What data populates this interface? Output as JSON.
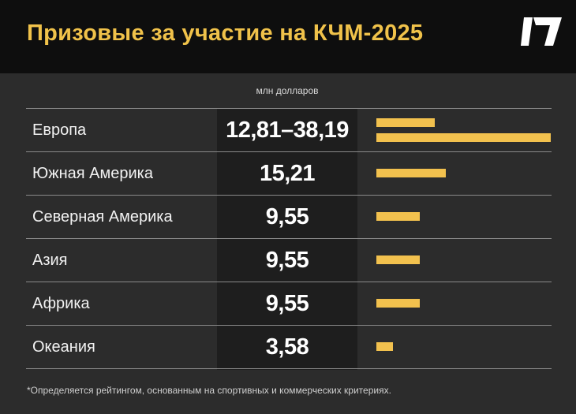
{
  "title": "Призовые за участие на КЧМ-2025",
  "footnote": "*Определяется рейтингом, основанным на спортивных и коммерческих критериях.",
  "colors": {
    "accent": "#f2c14e",
    "header_bg": "#0e0e0e",
    "background": "#2c2c2c",
    "value_column_bg": "#1e1e1e"
  },
  "chart_data": {
    "type": "bar",
    "orientation": "horizontal",
    "unit_label": "млн долларов",
    "categories": [
      "Европа",
      "Южная Америка",
      "Северная Америка",
      "Азия",
      "Африка",
      "Океания"
    ],
    "value_labels": [
      "12,81–38,19",
      "15,21",
      "9,55",
      "9,55",
      "9,55",
      "3,58"
    ],
    "bars": [
      [
        12.81,
        38.19
      ],
      [
        15.21
      ],
      [
        9.55
      ],
      [
        9.55
      ],
      [
        9.55
      ],
      [
        3.58
      ]
    ],
    "xlim": [
      0,
      38.19
    ]
  }
}
